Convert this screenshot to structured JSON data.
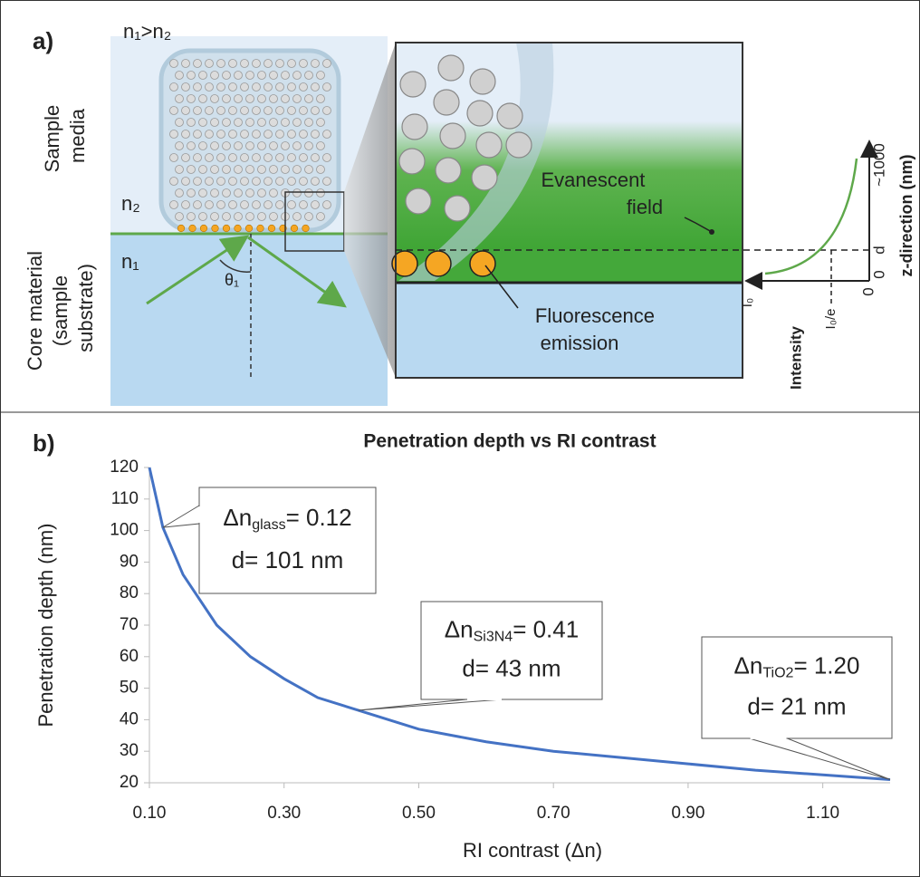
{
  "panel_a": {
    "label": "a)",
    "condition": "n₁>n₂",
    "sample_label": [
      "Sample",
      "media"
    ],
    "n2": "n₂",
    "n1": "n₁",
    "core_label": [
      "Core material",
      "(sample",
      "substrate)"
    ],
    "angle": "θ₁",
    "evanescent": [
      "Evanescent",
      "field"
    ],
    "fluorescence": [
      "Fluorescence",
      "emission"
    ],
    "z_axis": "z-direction (nm)",
    "z_top": "~1000",
    "z_d": "d",
    "z_zero": "0",
    "x_zero": "0",
    "i0": "I₀",
    "i0e": "I₀/e",
    "intensity": "Intensity"
  },
  "chart_data": {
    "type": "line",
    "panel_label": "b)",
    "title": "Penetration depth vs RI contrast",
    "x_label": "RI contrast (Δn)",
    "y_label": "Penetration depth (nm)",
    "color": "#4472c4",
    "x": [
      0.1,
      0.12,
      0.15,
      0.2,
      0.25,
      0.3,
      0.35,
      0.41,
      0.5,
      0.6,
      0.7,
      0.8,
      0.9,
      1.0,
      1.1,
      1.2
    ],
    "values": [
      120,
      101,
      86,
      70,
      60,
      53,
      47,
      43,
      37,
      33,
      30,
      28,
      26,
      24,
      22.5,
      21
    ],
    "xlim": [
      0.1,
      1.2
    ],
    "ylim": [
      20,
      120
    ],
    "xticks": [
      {
        "value": 0.1,
        "label": "0.10"
      },
      {
        "value": 0.3,
        "label": "0.30"
      },
      {
        "value": 0.5,
        "label": "0.50"
      },
      {
        "value": 0.7,
        "label": "0.70"
      },
      {
        "value": 0.9,
        "label": "0.90"
      },
      {
        "value": 1.1,
        "label": "1.10"
      }
    ],
    "yticks": [
      20,
      30,
      40,
      50,
      60,
      70,
      80,
      90,
      100,
      110,
      120
    ],
    "annotations": [
      {
        "symbol": "Δn",
        "subscript": "glass",
        "text": "= 0.12",
        "depth": "d= 101 nm",
        "x": 0.12,
        "y": 101
      },
      {
        "symbol": "Δn",
        "subscript": "Si3N4",
        "text": "= 0.41",
        "depth": "d= 43 nm",
        "x": 0.41,
        "y": 43
      },
      {
        "symbol": "Δn",
        "subscript": "TiO2",
        "text": "= 1.20",
        "depth": "d= 21 nm",
        "x": 1.2,
        "y": 21
      }
    ]
  }
}
